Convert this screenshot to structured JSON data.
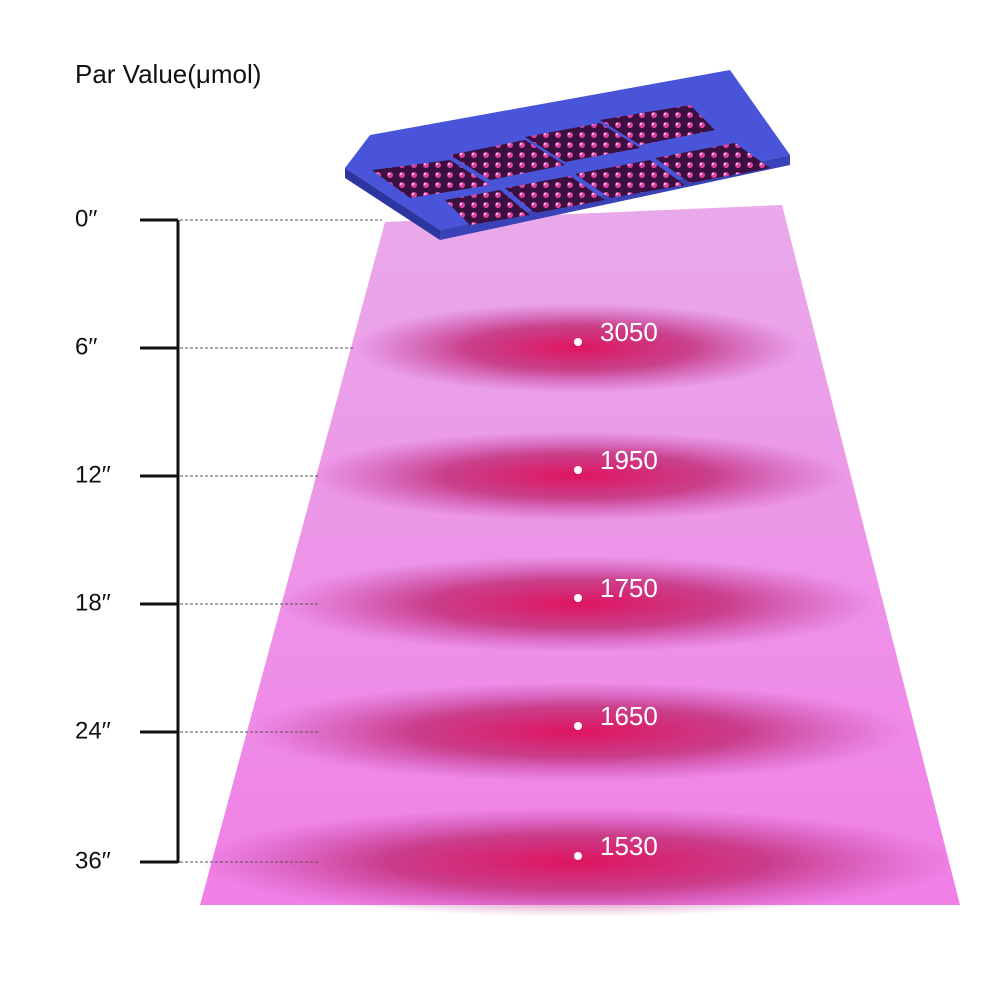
{
  "title": "Par Value(μmol)",
  "levels": [
    {
      "label": "0′′"
    },
    {
      "label": "6′′",
      "value": 3050
    },
    {
      "label": "12′′",
      "value": 1950
    },
    {
      "label": "18′′",
      "value": 1750
    },
    {
      "label": "24′′",
      "value": 1650
    },
    {
      "label": "36′′",
      "value": 1530
    }
  ]
}
